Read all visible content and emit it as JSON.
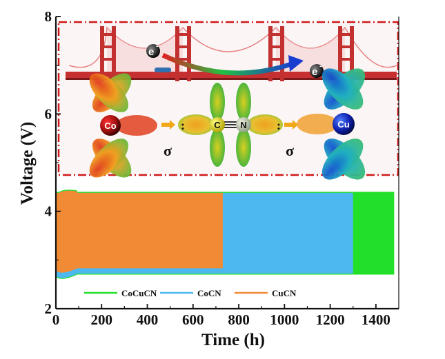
{
  "chart_data": {
    "type": "area",
    "xlabel": "Time (h)",
    "ylabel": "Voltage (V)",
    "xlim": [
      0,
      1500
    ],
    "ylim": [
      2,
      8
    ],
    "xticks": [
      "0",
      "200",
      "400",
      "600",
      "800",
      "1000",
      "1200",
      "1400"
    ],
    "yticks": [
      "2",
      "4",
      "6",
      "8"
    ],
    "series": [
      {
        "name": "CoCuCN",
        "color": "#22e02a",
        "x_end": 1480,
        "upper": 4.4,
        "lower": 2.7
      },
      {
        "name": "CoCN",
        "color": "#4db8f0",
        "x_end": 1300,
        "upper": 4.38,
        "lower": 2.72
      },
      {
        "name": "CuCN",
        "color": "#f08a35",
        "x_end": 730,
        "upper": 4.38,
        "lower": 2.83
      }
    ],
    "legend_position": "bottom"
  },
  "inset": {
    "electron_label": "e",
    "electron_sup": "-",
    "metal_left": "Co",
    "metal_right": "Cu",
    "ligand_c": "C",
    "ligand_n": "N",
    "sigma": "σ",
    "colon": ":"
  }
}
